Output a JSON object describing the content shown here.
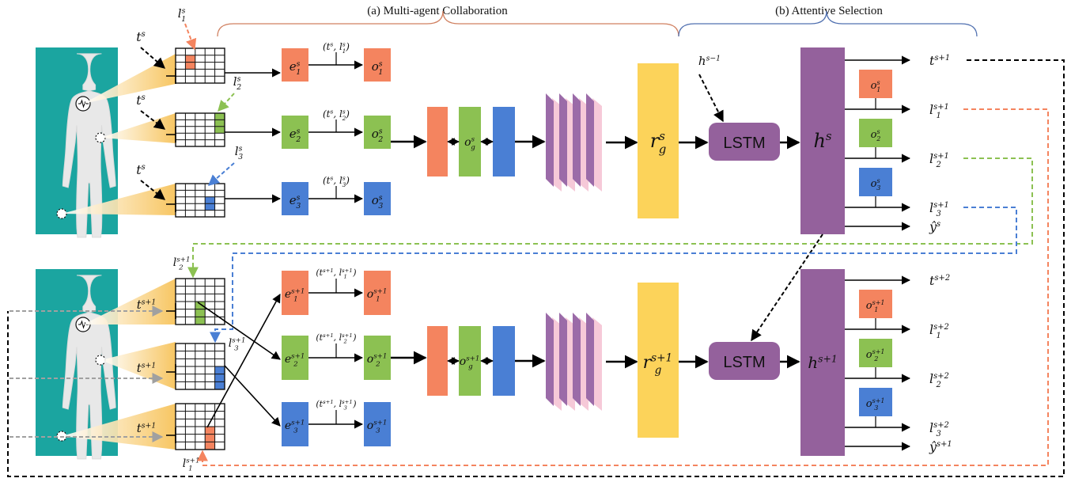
{
  "headers": {
    "collab": "(a) Multi-agent Collaboration",
    "attentive": "(b) Attentive Selection"
  },
  "colors": {
    "agent1": "#F4845F",
    "agent2": "#8CC152",
    "agent3": "#4A7FD4",
    "lstm": "#94619C",
    "rg": "#FCD35A",
    "body_bg": "#1BA5A0",
    "conv": "#9B6BA8",
    "conv_pink": "#F6C9D8"
  },
  "top": {
    "t": "t^s",
    "l1": "l_1^s",
    "l2": "l_2^s",
    "l3": "l_3^s",
    "e": [
      "e_1^s",
      "e_2^s",
      "e_3^s"
    ],
    "pair": [
      "(t^s, l_1^s)",
      "(t^s, l_2^s)",
      "(t^s, l_3^s)"
    ],
    "o": [
      "o_1^s",
      "o_2^s",
      "o_3^s"
    ],
    "og": "o_g^s",
    "rg": "r_g^s",
    "hprev": "h^{s−1}",
    "lstm": "LSTM",
    "h": "h^s",
    "out_t": "t^{s+1}",
    "out_l": [
      "l_1^{s+1}",
      "l_2^{s+1}",
      "l_3^{s+1}"
    ],
    "out_y": "ŷ^s",
    "small_o": [
      "o_1^s",
      "o_2^s",
      "o_3^s"
    ]
  },
  "bottom": {
    "t": "t^{s+1}",
    "l1": "l_1^{s+1}",
    "l2": "l_2^{s+1}",
    "l3": "l_3^{s+1}",
    "e": [
      "e_1^{s+1}",
      "e_2^{s+1}",
      "e_3^{s+1}"
    ],
    "pair": [
      "(t^{s+1}, l_1^{s+1})",
      "(t^{s+1}, l_2^{s+1})",
      "(t^{s+1}, l_3^{s+1})"
    ],
    "o": [
      "o_1^{s+1}",
      "o_2^{s+1}",
      "o_3^{s+1}"
    ],
    "og": "o_g^{s+1}",
    "rg": "r_g^{s+1}",
    "lstm": "LSTM",
    "h": "h^{s+1}",
    "out_t": "t^{s+2}",
    "out_l": [
      "l_1^{s+2}",
      "l_2^{s+2}",
      "l_3^{s+2}"
    ],
    "out_y": "ŷ^{s+1}",
    "small_o": [
      "o_1^{s+1}",
      "o_2^{s+1}",
      "o_3^{s+1}"
    ]
  }
}
